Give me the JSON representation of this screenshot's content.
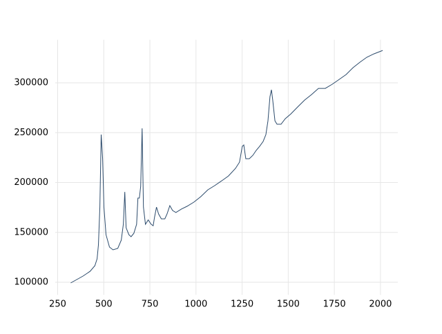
{
  "chart_data": {
    "type": "line",
    "x": [
      321,
      388,
      426,
      452,
      464,
      471,
      479,
      486,
      494,
      501,
      512,
      531,
      550,
      576,
      595,
      606,
      614,
      621,
      636,
      648,
      663,
      678,
      685,
      693,
      700,
      708,
      715,
      726,
      741,
      757,
      768,
      775,
      786,
      797,
      812,
      831,
      843,
      858,
      873,
      891,
      921,
      951,
      988,
      1026,
      1064,
      1101,
      1139,
      1176,
      1214,
      1236,
      1251,
      1259,
      1270,
      1289,
      1308,
      1326,
      1345,
      1364,
      1379,
      1390,
      1401,
      1409,
      1416,
      1428,
      1439,
      1461,
      1484,
      1514,
      1551,
      1589,
      1626,
      1664,
      1701,
      1739,
      1776,
      1814,
      1851,
      1889,
      1926,
      1964,
      2012
    ],
    "series": [
      {
        "color": "#2b4a6b",
        "values": [
          99300,
          106200,
          111000,
          116600,
          123500,
          137400,
          175400,
          248100,
          223900,
          175400,
          147700,
          135300,
          132500,
          133900,
          142200,
          158100,
          190600,
          154700,
          147700,
          145700,
          149100,
          158100,
          184400,
          184400,
          196200,
          254300,
          175400,
          158100,
          162500,
          158100,
          156700,
          165000,
          175400,
          168500,
          163600,
          163600,
          168500,
          176800,
          172000,
          170000,
          173400,
          176100,
          180300,
          185800,
          192700,
          196900,
          201700,
          206600,
          214200,
          220400,
          236300,
          237700,
          223900,
          223900,
          227300,
          232200,
          236300,
          241200,
          248100,
          261900,
          286100,
          293000,
          282700,
          261900,
          258500,
          258500,
          264000,
          268800,
          275800,
          282700,
          288200,
          294400,
          294400,
          298600,
          303400,
          308300,
          315200,
          320700,
          325600,
          329000,
          332500
        ]
      }
    ],
    "xlim": [
      237,
      2094
    ],
    "xticks": [
      250,
      500,
      750,
      1000,
      1250,
      1500,
      1750,
      2000
    ],
    "ylim": [
      87400,
      343200
    ],
    "yticks": [
      100000,
      150000,
      200000,
      250000,
      300000
    ],
    "grid": true
  }
}
